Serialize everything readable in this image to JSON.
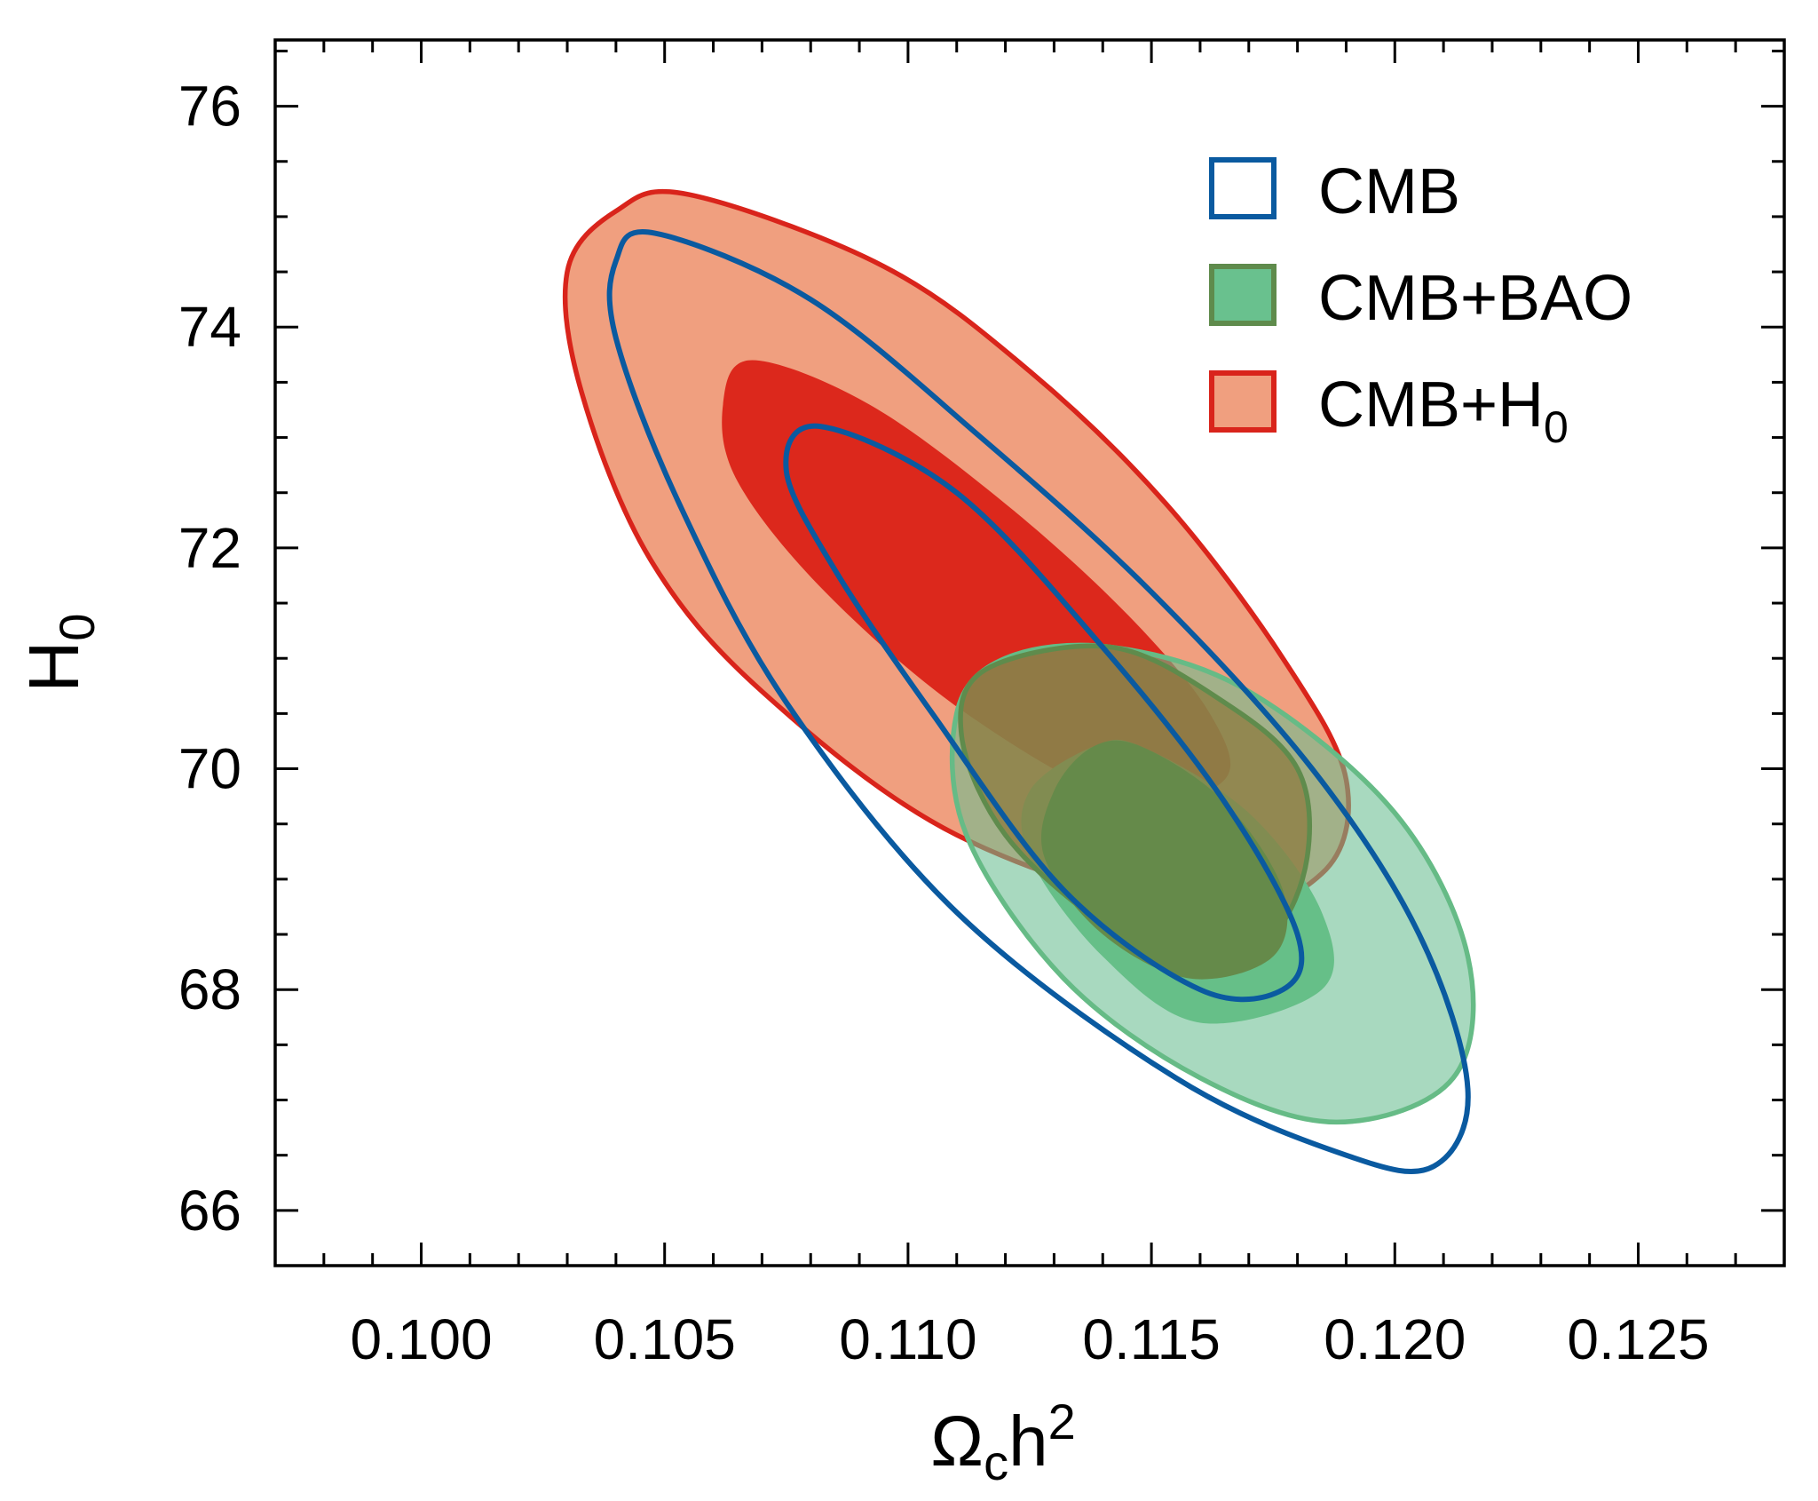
{
  "chart_data": {
    "type": "contour",
    "xlabel": {
      "main": "Ω",
      "sub": "c",
      "rest": "h",
      "sup": "2"
    },
    "ylabel": {
      "main": "H",
      "sub": "0"
    },
    "xlim": [
      0.097,
      0.128
    ],
    "ylim": [
      65.5,
      76.6
    ],
    "xticks": [
      0.1,
      0.105,
      0.11,
      0.115,
      0.12,
      0.125
    ],
    "xtick_labels": [
      "0.100",
      "0.105",
      "0.110",
      "0.115",
      "0.120",
      "0.125"
    ],
    "yticks": [
      66,
      68,
      70,
      72,
      74,
      76
    ],
    "ytick_labels": [
      "66",
      "68",
      "70",
      "72",
      "74",
      "76"
    ],
    "grid": false,
    "legend_position": "top-right",
    "legend": [
      {
        "label": "CMB",
        "sub": "",
        "style": "outline",
        "color": "#0a5aa0"
      },
      {
        "label": "CMB+BAO",
        "sub": "",
        "style": "filled",
        "color": "#5f8b4c",
        "fill": "#69c18e"
      },
      {
        "label": "CMB+H",
        "sub": "0",
        "style": "filled",
        "color": "#d9241b",
        "fill": "#f09f7f"
      }
    ],
    "series": [
      {
        "name": "CMB+H0",
        "style": "filled",
        "edge": "#d9241b",
        "contours": [
          {
            "level": "95%",
            "fill": "#f09f7f",
            "points": [
              [
                0.1055,
                75.2
              ],
              [
                0.1095,
                74.55
              ],
              [
                0.1125,
                73.6
              ],
              [
                0.1153,
                72.4
              ],
              [
                0.1177,
                71.0
              ],
              [
                0.119,
                69.9
              ],
              [
                0.1185,
                69.05
              ],
              [
                0.116,
                68.7
              ],
              [
                0.111,
                69.4
              ],
              [
                0.107,
                70.7
              ],
              [
                0.1047,
                71.9
              ],
              [
                0.1033,
                73.4
              ],
              [
                0.103,
                74.5
              ],
              [
                0.104,
                75.05
              ]
            ]
          },
          {
            "level": "68%",
            "fill": "#dc281c",
            "points": [
              [
                0.1068,
                73.7
              ],
              [
                0.1092,
                73.3
              ],
              [
                0.112,
                72.4
              ],
              [
                0.1145,
                71.4
              ],
              [
                0.1162,
                70.5
              ],
              [
                0.1165,
                69.9
              ],
              [
                0.1145,
                69.7
              ],
              [
                0.1112,
                70.5
              ],
              [
                0.1083,
                71.6
              ],
              [
                0.1065,
                72.6
              ],
              [
                0.1062,
                73.3
              ]
            ]
          }
        ]
      },
      {
        "name": "CMB+BAO",
        "style": "filled",
        "edge": "#66bb86",
        "contours": [
          {
            "level": "95%",
            "fill": "rgba(105,190,145,0.58)",
            "points": [
              [
                0.1142,
                71.1
              ],
              [
                0.117,
                70.7
              ],
              [
                0.12,
                69.6
              ],
              [
                0.1215,
                68.3
              ],
              [
                0.1212,
                67.2
              ],
              [
                0.1188,
                66.8
              ],
              [
                0.116,
                67.2
              ],
              [
                0.1132,
                68.1
              ],
              [
                0.1112,
                69.4
              ],
              [
                0.111,
                70.5
              ],
              [
                0.112,
                71.0
              ]
            ]
          },
          {
            "level": "68%",
            "fill": "#66bf88",
            "points": [
              [
                0.1148,
                70.2
              ],
              [
                0.117,
                69.6
              ],
              [
                0.1185,
                68.7
              ],
              [
                0.1185,
                68.0
              ],
              [
                0.116,
                67.7
              ],
              [
                0.114,
                68.3
              ],
              [
                0.1125,
                69.2
              ],
              [
                0.1125,
                69.8
              ],
              [
                0.1138,
                70.2
              ]
            ]
          }
        ]
      },
      {
        "name": "CMB+BAO overlap",
        "style": "filled",
        "edge": "#5f8b4c",
        "contours": [
          {
            "level": "95%",
            "fill": "rgba(140,120,60,0.72)",
            "points": [
              [
                0.1142,
                71.1
              ],
              [
                0.1165,
                70.6
              ],
              [
                0.118,
                70.0
              ],
              [
                0.1182,
                69.2
              ],
              [
                0.1175,
                68.5
              ],
              [
                0.116,
                68.2
              ],
              [
                0.114,
                68.6
              ],
              [
                0.112,
                69.4
              ],
              [
                0.1111,
                70.3
              ],
              [
                0.1116,
                70.9
              ]
            ]
          },
          {
            "level": "68%",
            "fill": "#658a4a",
            "points": [
              [
                0.1148,
                70.2
              ],
              [
                0.1165,
                69.7
              ],
              [
                0.1177,
                68.9
              ],
              [
                0.1175,
                68.3
              ],
              [
                0.1158,
                68.1
              ],
              [
                0.114,
                68.5
              ],
              [
                0.1128,
                69.2
              ],
              [
                0.113,
                69.8
              ],
              [
                0.1138,
                70.2
              ]
            ]
          }
        ]
      },
      {
        "name": "CMB",
        "style": "outline",
        "edge": "#0a5aa0",
        "contours": [
          {
            "level": "95%",
            "points": [
              [
                0.1048,
                74.85
              ],
              [
                0.108,
                74.25
              ],
              [
                0.1115,
                73.0
              ],
              [
                0.115,
                71.6
              ],
              [
                0.1183,
                70.0
              ],
              [
                0.1205,
                68.5
              ],
              [
                0.1215,
                67.1
              ],
              [
                0.1208,
                66.4
              ],
              [
                0.119,
                66.5
              ],
              [
                0.1155,
                67.2
              ],
              [
                0.111,
                68.7
              ],
              [
                0.1075,
                70.6
              ],
              [
                0.1053,
                72.4
              ],
              [
                0.104,
                73.9
              ],
              [
                0.104,
                74.6
              ]
            ]
          },
          {
            "level": "68%",
            "points": [
              [
                0.1082,
                73.1
              ],
              [
                0.111,
                72.5
              ],
              [
                0.114,
                71.1
              ],
              [
                0.1165,
                69.7
              ],
              [
                0.118,
                68.5
              ],
              [
                0.1177,
                68.0
              ],
              [
                0.116,
                68.0
              ],
              [
                0.1132,
                68.9
              ],
              [
                0.1105,
                70.5
              ],
              [
                0.1085,
                71.8
              ],
              [
                0.1075,
                72.7
              ]
            ]
          }
        ]
      }
    ]
  }
}
